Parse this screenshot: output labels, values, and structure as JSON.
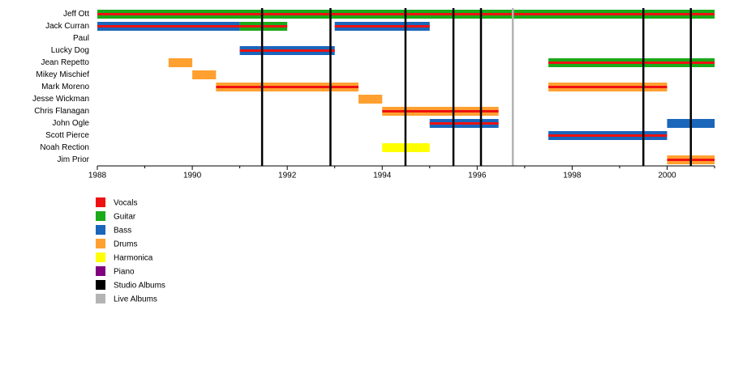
{
  "chart_data": {
    "type": "timeline",
    "xlim": [
      1988,
      2001
    ],
    "xticks": [
      1988,
      1990,
      1992,
      1994,
      1996,
      1998,
      2000
    ],
    "xminor_ticks": [
      1989,
      1991,
      1993,
      1995,
      1997,
      1999,
      2001
    ],
    "members": [
      "Jeff Ott",
      "Jack Curran",
      "Paul",
      "Lucky Dog",
      "Jean Repetto",
      "Mikey Mischief",
      "Mark Moreno",
      "Jesse Wickman",
      "Chris Flanagan",
      "John Ogle",
      "Scott Pierce",
      "Noah Rection",
      "Jim Prior"
    ],
    "legend": [
      {
        "name": "Vocals",
        "color": "#ee1111"
      },
      {
        "name": "Guitar",
        "color": "#1aaa1a"
      },
      {
        "name": "Bass",
        "color": "#1a66bb"
      },
      {
        "name": "Drums",
        "color": "#ffa030"
      },
      {
        "name": "Harmonica",
        "color": "#ffff00"
      },
      {
        "name": "Piano",
        "color": "#800080"
      },
      {
        "name": "Studio Albums",
        "color": "#000000"
      },
      {
        "name": "Live Albums",
        "color": "#b4b4b4"
      }
    ],
    "bars": [
      {
        "member": 0,
        "role": 1,
        "stripe": 0,
        "start": 1988,
        "end": 2001
      },
      {
        "member": 1,
        "role": 2,
        "stripe": 0,
        "start": 1988,
        "end": 1991
      },
      {
        "member": 1,
        "role": 1,
        "stripe": 0,
        "start": 1991,
        "end": 1992
      },
      {
        "member": 1,
        "role": 2,
        "stripe": 0,
        "start": 1993,
        "end": 1995
      },
      {
        "member": 3,
        "role": 2,
        "stripe": 0,
        "start": 1991,
        "end": 1993
      },
      {
        "member": 4,
        "role": 3,
        "start": 1989.5,
        "end": 1990
      },
      {
        "member": 4,
        "role": 1,
        "stripe": 0,
        "start": 1997.5,
        "end": 2001
      },
      {
        "member": 5,
        "role": 3,
        "start": 1990,
        "end": 1990.5
      },
      {
        "member": 6,
        "role": 3,
        "stripe": 0,
        "start": 1990.5,
        "end": 1993.5
      },
      {
        "member": 6,
        "role": 3,
        "stripe": 0,
        "start": 1997.5,
        "end": 2000
      },
      {
        "member": 7,
        "role": 3,
        "start": 1993.5,
        "end": 1994
      },
      {
        "member": 8,
        "role": 3,
        "stripe": 0,
        "start": 1994,
        "end": 1996.45
      },
      {
        "member": 9,
        "role": 2,
        "stripe": 0,
        "start": 1995,
        "end": 1996.45
      },
      {
        "member": 9,
        "role": 2,
        "start": 2000,
        "end": 2001
      },
      {
        "member": 10,
        "role": 2,
        "stripe": 0,
        "start": 1997.5,
        "end": 2000
      },
      {
        "member": 11,
        "role": 4,
        "start": 1994,
        "end": 1995
      },
      {
        "member": 12,
        "role": 3,
        "stripe": 0,
        "start": 2000,
        "end": 2001
      }
    ],
    "album_lines": [
      {
        "legend": 6,
        "x": [
          1991.47,
          1992.91,
          1994.49,
          1995.5,
          1996.08,
          1999.5,
          2000.5
        ]
      },
      {
        "legend": 7,
        "x": [
          1996.75
        ]
      }
    ]
  }
}
